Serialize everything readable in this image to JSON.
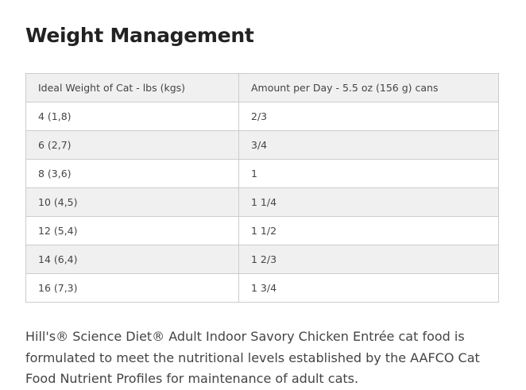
{
  "title": "Weight Management",
  "table": {
    "header": [
      "Ideal Weight of Cat - lbs (kgs)",
      "Amount per Day - 5.5 oz (156 g) cans"
    ],
    "rows": [
      [
        "4 (1,8)",
        "2/3"
      ],
      [
        "6 (2,7)",
        "3/4"
      ],
      [
        "8 (3,6)",
        "1"
      ],
      [
        "10 (4,5)",
        "1 1/4"
      ],
      [
        "12 (5,4)",
        "1 1/2"
      ],
      [
        "14 (6,4)",
        "1 2/3"
      ],
      [
        "16 (7,3)",
        "1 3/4"
      ]
    ]
  },
  "paragraph": "Hill's® Science Diet® Adult Indoor Savory Chicken Entrée cat food is formulated to meet the nutritional levels established by the AAFCO Cat Food Nutrient Profiles for maintenance of adult cats."
}
